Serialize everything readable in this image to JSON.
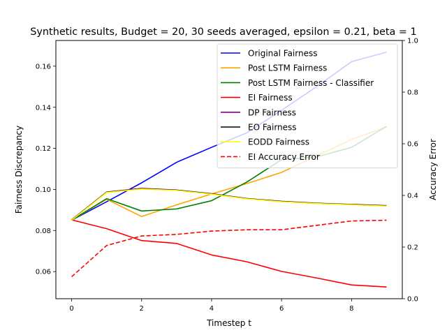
{
  "chart_data": {
    "type": "line",
    "title": "Synthetic results, Budget = 20, 30 seeds averaged, epsilon = 0.21, beta = 1",
    "xlabel": "Timestep t",
    "ylabel_left": "Fairness Discrepancy",
    "ylabel_right": "Accuracy Error",
    "xlim": [
      -0.45,
      9.45
    ],
    "ylim_left": [
      0.0468,
      0.1725
    ],
    "ylim_right": [
      0.0,
      1.0
    ],
    "x_ticks": [
      0,
      2,
      4,
      6,
      8
    ],
    "y_ticks_left": [
      0.06,
      0.08,
      0.1,
      0.12,
      0.14,
      0.16
    ],
    "y_ticks_right": [
      0.0,
      0.2,
      0.4,
      0.6,
      0.8,
      1.0
    ],
    "x_tick_labels": [
      "0",
      "2",
      "4",
      "6",
      "8"
    ],
    "y_tick_labels_left": [
      "0.06",
      "0.08",
      "0.10",
      "0.12",
      "0.14",
      "0.16"
    ],
    "y_tick_labels_right": [
      "0.0",
      "0.2",
      "0.4",
      "0.6",
      "0.8",
      "1.0"
    ],
    "x": [
      0,
      1,
      2,
      3,
      4,
      5,
      6,
      7,
      8,
      9
    ],
    "legend_position": "upper-right",
    "series": [
      {
        "name": "Original Fairness",
        "color": "#0000ff",
        "dash": false,
        "axis": "left",
        "values": [
          0.085,
          0.094,
          0.1032,
          0.1132,
          0.1205,
          0.1275,
          0.1385,
          0.15,
          0.1622,
          0.1668
        ]
      },
      {
        "name": "Post LSTM Fairness",
        "color": "#ffa500",
        "dash": false,
        "axis": "left",
        "values": [
          0.085,
          0.0952,
          0.0868,
          0.0925,
          0.0978,
          0.1028,
          0.1083,
          0.1163,
          0.1243,
          0.1305
        ]
      },
      {
        "name": "Post LSTM Fairness - Classifier",
        "color": "#008000",
        "dash": false,
        "axis": "left",
        "values": [
          0.085,
          0.0955,
          0.0895,
          0.0905,
          0.0945,
          0.1035,
          0.1145,
          0.1158,
          0.1205,
          0.1307
        ]
      },
      {
        "name": "EI Fairness",
        "color": "#ff0000",
        "dash": false,
        "axis": "left",
        "values": [
          0.0852,
          0.0809,
          0.0751,
          0.0737,
          0.0681,
          0.0648,
          0.0601,
          0.0569,
          0.0535,
          0.0525
        ]
      },
      {
        "name": "DP Fairness",
        "color": "#800080",
        "dash": false,
        "axis": "left",
        "values": [
          0.0852,
          0.0987,
          0.1005,
          0.0997,
          0.0979,
          0.0956,
          0.0942,
          0.0933,
          0.0927,
          0.0921
        ]
      },
      {
        "name": "EO Fairness",
        "color": "#000000",
        "dash": false,
        "axis": "left",
        "values": [
          0.0851,
          0.0986,
          0.1003,
          0.0996,
          0.0978,
          0.0955,
          0.0941,
          0.0932,
          0.0926,
          0.092
        ]
      },
      {
        "name": "EODD Fairness",
        "color": "#ffff00",
        "dash": false,
        "axis": "left",
        "values": [
          0.085,
          0.0985,
          0.1002,
          0.0995,
          0.0977,
          0.0954,
          0.094,
          0.0931,
          0.0925,
          0.0919
        ]
      },
      {
        "name": "EI Accuracy Error",
        "color": "#ff0000",
        "dash": true,
        "axis": "right",
        "values": [
          0.085,
          0.206,
          0.243,
          0.249,
          0.262,
          0.267,
          0.267,
          0.284,
          0.301,
          0.304
        ]
      }
    ]
  }
}
